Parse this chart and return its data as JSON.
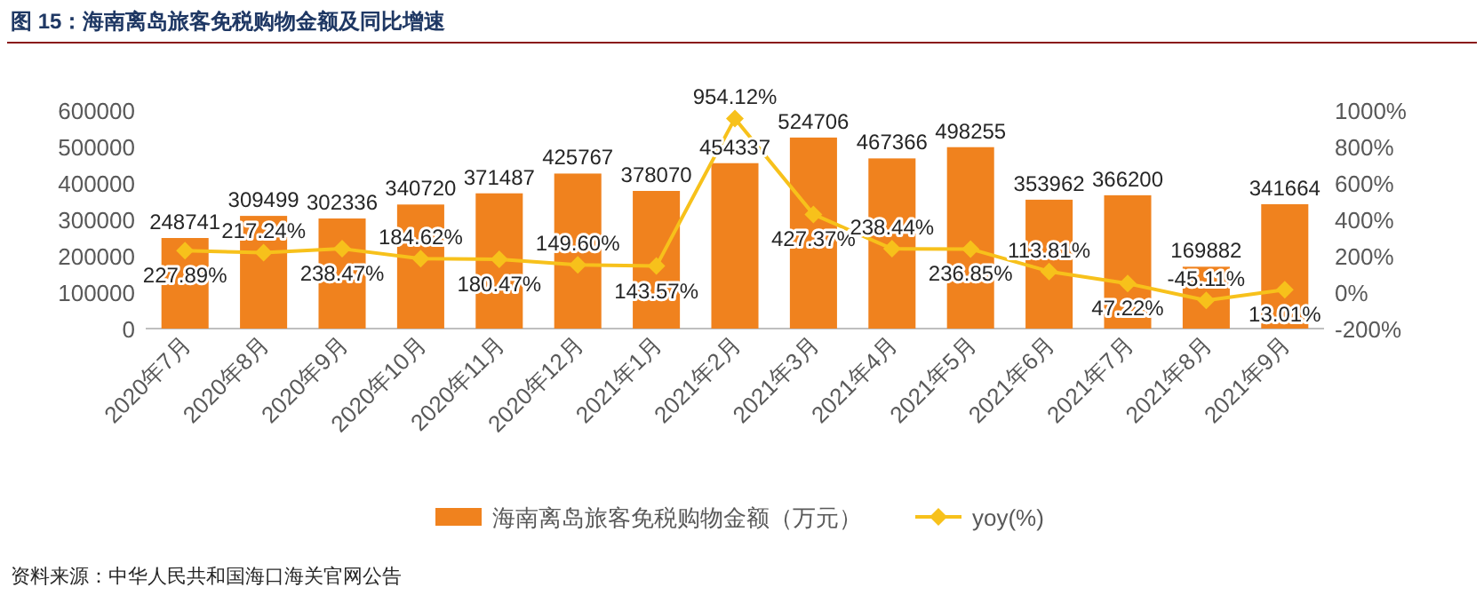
{
  "chart_data": {
    "type": "bar",
    "title": "图 15：海南离岛旅客免税购物金额及同比增速",
    "categories": [
      "2020年7月",
      "2020年8月",
      "2020年9月",
      "2020年10月",
      "2020年11月",
      "2020年12月",
      "2021年1月",
      "2021年2月",
      "2021年3月",
      "2021年4月",
      "2021年5月",
      "2021年6月",
      "2021年7月",
      "2021年8月",
      "2021年9月"
    ],
    "series": [
      {
        "name": "海南离岛旅客免税购物金额（万元）",
        "color": "#f0821e",
        "values": [
          248741,
          309499,
          302336,
          340720,
          371487,
          425767,
          378070,
          454337,
          524706,
          467366,
          498255,
          353962,
          366200,
          169882,
          341664
        ]
      },
      {
        "name": "yoy(%)",
        "type": "line",
        "axis": "y2",
        "color": "#f7c11b",
        "marker": "diamond",
        "values": [
          227.89,
          217.24,
          238.47,
          184.62,
          180.47,
          149.6,
          143.57,
          954.12,
          427.37,
          238.44,
          236.85,
          113.81,
          47.22,
          -45.11,
          13.01
        ],
        "value_labels": [
          "227.89%",
          "217.24%",
          "238.47%",
          "184.62%",
          "180.47%",
          "149.60%",
          "143.57%",
          "954.12%",
          "427.37%",
          "238.44%",
          "236.85%",
          "113.81%",
          "47.22%",
          "-45.11%",
          "13.01%"
        ]
      }
    ],
    "data_labels": true,
    "ylim": [
      0,
      600000
    ],
    "yticks": [
      0,
      100000,
      200000,
      300000,
      400000,
      500000,
      600000
    ],
    "y2lim": [
      -200,
      1000
    ],
    "y2ticks": [
      {
        "value": -200,
        "label": "-200%"
      },
      {
        "value": 0,
        "label": "0%"
      },
      {
        "value": 200,
        "label": "200%"
      },
      {
        "value": 400,
        "label": "400%"
      },
      {
        "value": 600,
        "label": "600%"
      },
      {
        "value": 800,
        "label": "800%"
      },
      {
        "value": 1000,
        "label": "1000%"
      }
    ],
    "legend": "bottom",
    "grid": false,
    "annotations": [
      "资料来源：中华人民共和国海口海关官网公告"
    ]
  }
}
